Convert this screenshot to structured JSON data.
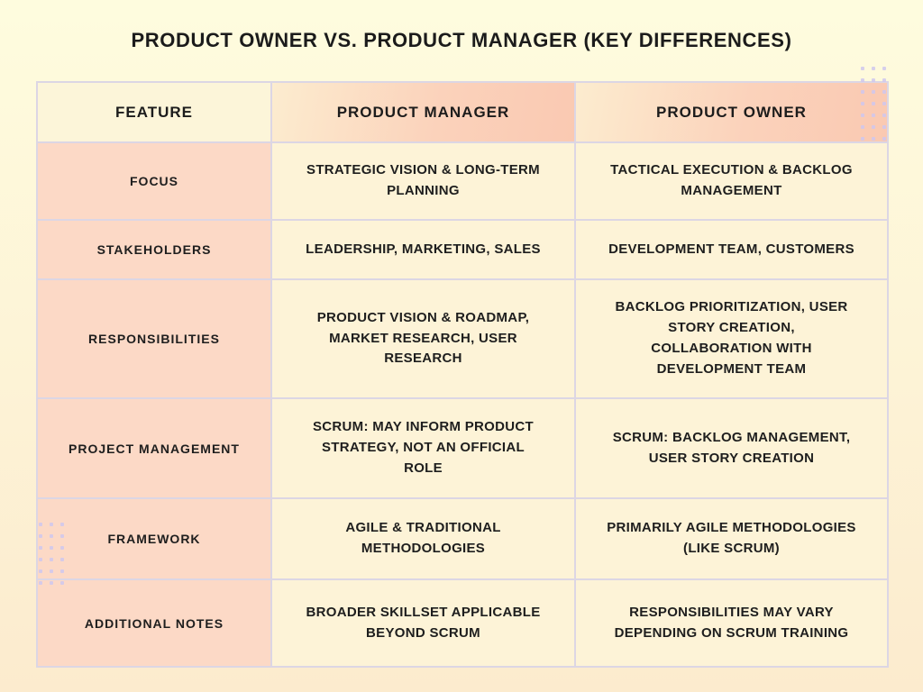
{
  "page": {
    "title": "PRODUCT OWNER VS. PRODUCT MANAGER (KEY DIFFERENCES)"
  },
  "colors": {
    "background_top": "#fefcde",
    "background_bottom": "#fcebce",
    "header_gradient_start": "#fceccf",
    "header_gradient_end": "#fac9b2",
    "feature_header_bg": "#fcf5d9",
    "feature_column_bg": "#fcd9c6",
    "data_cell_bg": "#fdf3d7",
    "border": "#dcd6e4",
    "text": "#1e1e1e",
    "dot": "#cfc7ed"
  },
  "table": {
    "columns": [
      "FEATURE",
      "PRODUCT MANAGER",
      "PRODUCT OWNER"
    ],
    "rows": [
      {
        "feature": "FOCUS",
        "product_manager": "STRATEGIC VISION & LONG-TERM\nPLANNING",
        "product_owner": "TACTICAL EXECUTION & BACKLOG\nMANAGEMENT"
      },
      {
        "feature": "STAKEHOLDERS",
        "product_manager": "LEADERSHIP, MARKETING, SALES",
        "product_owner": "DEVELOPMENT TEAM, CUSTOMERS"
      },
      {
        "feature": "RESPONSIBILITIES",
        "product_manager": "PRODUCT VISION & ROADMAP,\nMARKET RESEARCH, USER\nRESEARCH",
        "product_owner": "BACKLOG PRIORITIZATION, USER\nSTORY CREATION,\nCOLLABORATION WITH\nDEVELOPMENT TEAM"
      },
      {
        "feature": "PROJECT MANAGEMENT",
        "product_manager": "SCRUM: MAY INFORM PRODUCT\nSTRATEGY, NOT AN OFFICIAL\nROLE",
        "product_owner": "SCRUM: BACKLOG MANAGEMENT,\nUSER STORY CREATION"
      },
      {
        "feature": "FRAMEWORK",
        "product_manager": "AGILE & TRADITIONAL\nMETHODOLOGIES",
        "product_owner": "PRIMARILY AGILE METHODOLOGIES\n(LIKE SCRUM)"
      },
      {
        "feature": "ADDITIONAL NOTES",
        "product_manager": "BROADER SKILLSET APPLICABLE\nBEYOND SCRUM",
        "product_owner": "RESPONSIBILITIES MAY VARY\nDEPENDING ON SCRUM TRAINING"
      }
    ]
  },
  "chart_data": {
    "type": "table",
    "title": "PRODUCT OWNER VS. PRODUCT MANAGER (KEY DIFFERENCES)",
    "columns": [
      "FEATURE",
      "PRODUCT MANAGER",
      "PRODUCT OWNER"
    ],
    "rows": [
      [
        "FOCUS",
        "STRATEGIC VISION & LONG-TERM PLANNING",
        "TACTICAL EXECUTION & BACKLOG MANAGEMENT"
      ],
      [
        "STAKEHOLDERS",
        "LEADERSHIP, MARKETING, SALES",
        "DEVELOPMENT TEAM, CUSTOMERS"
      ],
      [
        "RESPONSIBILITIES",
        "PRODUCT VISION & ROADMAP, MARKET RESEARCH, USER RESEARCH",
        "BACKLOG PRIORITIZATION, USER STORY CREATION, COLLABORATION WITH DEVELOPMENT TEAM"
      ],
      [
        "PROJECT MANAGEMENT",
        "SCRUM: MAY INFORM PRODUCT STRATEGY, NOT AN OFFICIAL ROLE",
        "SCRUM: BACKLOG MANAGEMENT, USER STORY CREATION"
      ],
      [
        "FRAMEWORK",
        "AGILE & TRADITIONAL METHODOLOGIES",
        "PRIMARILY AGILE METHODOLOGIES (LIKE SCRUM)"
      ],
      [
        "ADDITIONAL NOTES",
        "BROADER SKILLSET APPLICABLE BEYOND SCRUM",
        "RESPONSIBILITIES MAY VARY DEPENDING ON SCRUM TRAINING"
      ]
    ]
  }
}
